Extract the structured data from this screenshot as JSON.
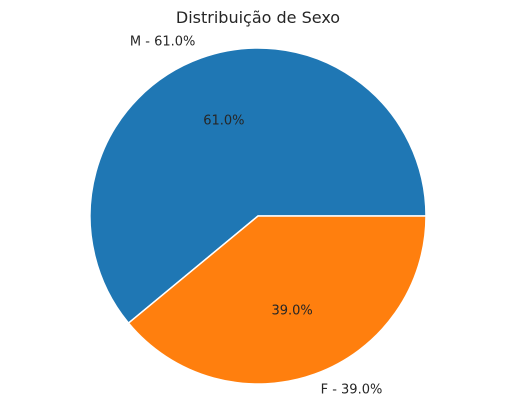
{
  "chart_data": {
    "type": "pie",
    "title": "Distribuição de Sexo",
    "slices": [
      {
        "name": "M",
        "label": "M - 61.0%",
        "pct_label": "61.0%",
        "value": 61.0,
        "color": "#1f77b4"
      },
      {
        "name": "F",
        "label": "F - 39.0%",
        "pct_label": "39.0%",
        "value": 39.0,
        "color": "#ff7f0e"
      }
    ],
    "start_angle_deg": 0,
    "direction": "counterclockwise",
    "edge_color": "#ffffff"
  }
}
